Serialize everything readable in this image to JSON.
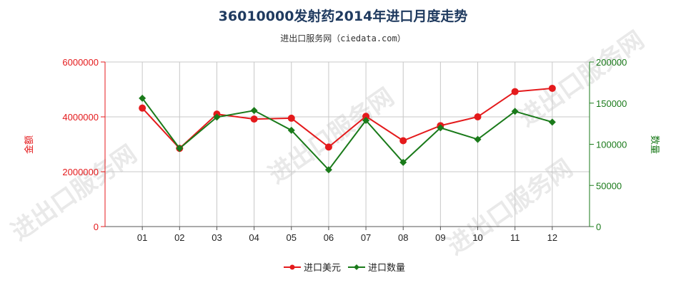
{
  "title": "36010000发射药2014年进口月度走势",
  "subtitle": "进出口服务网（ciedata.com）",
  "watermark": "进出口服务网",
  "chart_data": {
    "type": "line",
    "categories": [
      "01",
      "02",
      "03",
      "04",
      "05",
      "06",
      "07",
      "08",
      "09",
      "10",
      "11",
      "12"
    ],
    "left_axis": {
      "label": "金额",
      "ylim": [
        0,
        6000000
      ],
      "ticks": [
        0,
        2000000,
        4000000,
        6000000
      ],
      "tick_labels": [
        "0",
        "2000000",
        "4000000",
        "6000000"
      ],
      "color": "#e41a1c"
    },
    "right_axis": {
      "label": "数量",
      "ylim": [
        0,
        200000
      ],
      "ticks": [
        0,
        50000,
        100000,
        150000,
        200000
      ],
      "tick_labels": [
        "0",
        "50000",
        "100000",
        "150000",
        "200000"
      ],
      "color": "#1a7a1a"
    },
    "series": [
      {
        "name": "进口美元",
        "axis": "left",
        "color": "#e41a1c",
        "marker": "circle",
        "values": [
          4320000,
          2850000,
          4100000,
          3920000,
          3950000,
          2900000,
          4020000,
          3130000,
          3680000,
          4000000,
          4920000,
          5040000
        ]
      },
      {
        "name": "进口数量",
        "axis": "right",
        "color": "#1a7a1a",
        "marker": "diamond",
        "values": [
          156000,
          95000,
          133000,
          141000,
          117000,
          69000,
          129000,
          78000,
          120000,
          106000,
          140000,
          127000
        ]
      }
    ],
    "grid": true,
    "legend_position": "bottom"
  }
}
